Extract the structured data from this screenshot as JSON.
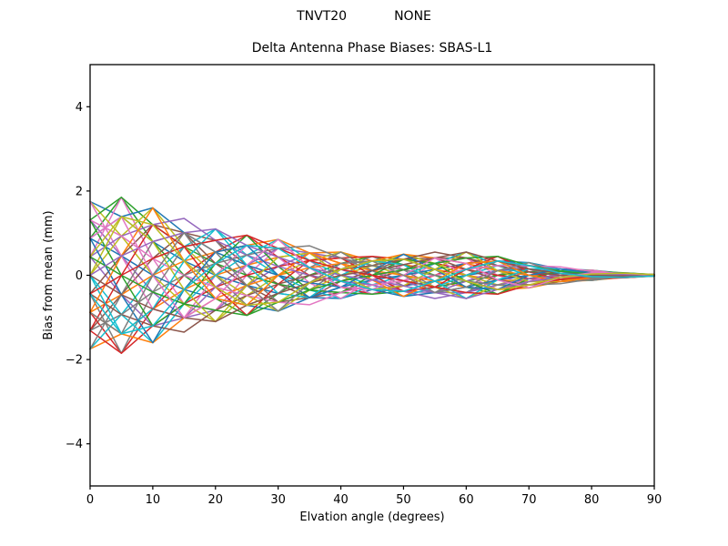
{
  "header": {
    "left_text": "TNVT20",
    "right_text": "NONE"
  },
  "colors": {
    "background": "#ffffff",
    "axes": "#000000"
  },
  "chart_data": {
    "type": "line",
    "suptitle": "TNVT20          NONE",
    "title": "Delta Antenna Phase Biases: SBAS-L1",
    "xlabel": "Elvation angle (degrees)",
    "ylabel": "Bias from mean (mm)",
    "xlim": [
      0,
      90
    ],
    "ylim": [
      -5,
      5
    ],
    "xticks": [
      0,
      10,
      20,
      30,
      40,
      50,
      60,
      70,
      80,
      90
    ],
    "xticklabels": [
      "0",
      "10",
      "20",
      "30",
      "40",
      "50",
      "60",
      "70",
      "80",
      "90"
    ],
    "yticks": [
      -4,
      -2,
      0,
      2,
      4
    ],
    "yticklabels": [
      "−4",
      "−2",
      "0",
      "2",
      "4"
    ],
    "grid": false,
    "legend": "none",
    "axis_box": true,
    "palette": [
      "#1f77b4",
      "#ff7f0e",
      "#2ca02c",
      "#d62728",
      "#9467bd",
      "#8c564b",
      "#e377c2",
      "#7f7f7f",
      "#bcbd22",
      "#17becf"
    ],
    "x": [
      0,
      5,
      10,
      15,
      20,
      25,
      30,
      35,
      40,
      45,
      50,
      55,
      60,
      65,
      70,
      75,
      80,
      85,
      90
    ],
    "series": [
      {
        "color": "#1f77b4",
        "values": [
          1.75,
          1.39,
          0.8,
          0.34,
          0.0,
          -0.24,
          -0.43,
          -0.53,
          -0.55,
          -0.34,
          -0.25,
          -0.14,
          0.0,
          0.11,
          0.15,
          0.15,
          0.12,
          0.05,
          0.01
        ]
      },
      {
        "color": "#ff7f0e",
        "values": [
          -1.75,
          -1.39,
          -0.8,
          -0.34,
          0.0,
          0.24,
          0.43,
          0.53,
          0.55,
          0.34,
          0.25,
          0.14,
          0.0,
          -0.11,
          -0.15,
          -0.15,
          -0.12,
          -0.05,
          -0.01
        ]
      },
      {
        "color": "#2ca02c",
        "values": [
          0.88,
          1.85,
          0.8,
          0.0,
          -0.55,
          -0.95,
          -0.43,
          0.0,
          0.28,
          0.45,
          0.25,
          0.0,
          -0.28,
          -0.45,
          -0.15,
          0.0,
          0.06,
          0.06,
          0.01
        ]
      },
      {
        "color": "#d62728",
        "values": [
          -0.88,
          -1.85,
          -0.8,
          0.0,
          0.55,
          0.95,
          0.43,
          0.0,
          -0.28,
          -0.45,
          -0.25,
          0.0,
          0.28,
          0.45,
          0.15,
          0.0,
          -0.06,
          -0.06,
          -0.01
        ]
      },
      {
        "color": "#9467bd",
        "values": [
          1.31,
          0.46,
          -0.4,
          -1.01,
          -0.83,
          -0.24,
          0.21,
          0.53,
          0.41,
          0.11,
          -0.13,
          -0.41,
          -0.41,
          -0.11,
          0.08,
          0.15,
          0.09,
          0.02,
          -0.01
        ]
      },
      {
        "color": "#8c564b",
        "values": [
          -1.31,
          -0.46,
          0.4,
          1.01,
          0.83,
          0.24,
          -0.21,
          -0.53,
          -0.41,
          -0.11,
          0.13,
          0.41,
          0.41,
          0.11,
          -0.08,
          -0.15,
          -0.09,
          -0.02,
          0.01
        ]
      },
      {
        "color": "#e377c2",
        "values": [
          0.44,
          1.85,
          0.4,
          -0.68,
          -0.83,
          0.0,
          0.64,
          0.35,
          -0.14,
          -0.45,
          -0.13,
          0.28,
          0.41,
          0.0,
          -0.23,
          -0.1,
          0.03,
          0.06,
          0.01
        ]
      },
      {
        "color": "#7f7f7f",
        "values": [
          -0.44,
          -1.85,
          -0.4,
          0.68,
          0.83,
          0.0,
          -0.64,
          -0.35,
          0.14,
          0.45,
          0.13,
          -0.28,
          -0.41,
          0.0,
          0.23,
          0.1,
          -0.03,
          -0.06,
          -0.01
        ]
      },
      {
        "color": "#bcbd22",
        "values": [
          1.75,
          0.93,
          0.0,
          -0.68,
          -1.1,
          -0.48,
          0.0,
          0.35,
          0.55,
          0.23,
          0.0,
          -0.28,
          -0.55,
          -0.23,
          0.0,
          0.1,
          0.12,
          0.03,
          0.0
        ]
      },
      {
        "color": "#17becf",
        "values": [
          -1.75,
          -0.93,
          0.0,
          0.68,
          1.1,
          0.48,
          0.0,
          -0.35,
          -0.55,
          -0.23,
          0.0,
          0.28,
          0.55,
          0.23,
          0.0,
          -0.1,
          -0.12,
          -0.03,
          0.0
        ]
      },
      {
        "color": "#1f77b4",
        "values": [
          0.88,
          0.46,
          0.0,
          -0.34,
          -0.55,
          -0.71,
          -0.85,
          -0.53,
          -0.28,
          -0.11,
          0.0,
          0.14,
          0.28,
          0.34,
          0.3,
          0.15,
          0.06,
          0.02,
          0.0
        ]
      },
      {
        "color": "#ff7f0e",
        "values": [
          -0.88,
          -0.46,
          0.0,
          0.34,
          0.55,
          0.71,
          0.85,
          0.53,
          0.28,
          0.11,
          0.0,
          -0.14,
          -0.28,
          -0.34,
          -0.3,
          -0.15,
          -0.06,
          -0.02,
          0.0
        ]
      },
      {
        "color": "#2ca02c",
        "values": [
          1.31,
          1.85,
          1.2,
          0.68,
          0.28,
          0.0,
          -0.21,
          -0.35,
          -0.41,
          -0.45,
          -0.38,
          -0.28,
          -0.14,
          0.0,
          0.08,
          0.1,
          0.09,
          0.06,
          0.02
        ]
      },
      {
        "color": "#d62728",
        "values": [
          -1.31,
          -1.85,
          -1.2,
          -0.68,
          -0.28,
          0.0,
          0.21,
          0.35,
          0.41,
          0.45,
          0.38,
          0.28,
          0.14,
          0.0,
          -0.08,
          -0.1,
          -0.09,
          -0.06,
          -0.02
        ]
      },
      {
        "color": "#9467bd",
        "values": [
          0.44,
          -0.46,
          -1.2,
          -1.01,
          -0.28,
          0.24,
          0.64,
          0.53,
          0.14,
          -0.11,
          -0.38,
          -0.41,
          -0.14,
          0.11,
          0.23,
          0.15,
          0.03,
          -0.02,
          -0.02
        ]
      },
      {
        "color": "#8c564b",
        "values": [
          -0.44,
          0.46,
          1.2,
          1.01,
          0.28,
          -0.24,
          -0.64,
          -0.53,
          -0.14,
          0.11,
          0.38,
          0.41,
          0.14,
          -0.11,
          -0.23,
          -0.15,
          -0.03,
          0.02,
          0.02
        ]
      },
      {
        "color": "#e377c2",
        "values": [
          1.75,
          0.46,
          -0.8,
          -1.01,
          0.0,
          0.71,
          0.43,
          -0.18,
          -0.55,
          -0.11,
          0.25,
          0.41,
          0.0,
          -0.34,
          -0.15,
          0.05,
          0.12,
          0.02,
          -0.01
        ]
      },
      {
        "color": "#7f7f7f",
        "values": [
          -1.75,
          -0.46,
          0.8,
          1.01,
          0.0,
          -0.71,
          -0.43,
          0.18,
          0.55,
          0.11,
          -0.25,
          -0.41,
          0.0,
          0.34,
          0.15,
          -0.05,
          -0.12,
          -0.02,
          0.01
        ]
      },
      {
        "color": "#bcbd22",
        "values": [
          0.0,
          0.93,
          1.6,
          0.68,
          0.0,
          -0.48,
          -0.85,
          -0.35,
          0.0,
          0.23,
          0.5,
          0.28,
          0.0,
          -0.23,
          -0.3,
          -0.1,
          0.0,
          0.03,
          0.02
        ]
      },
      {
        "color": "#17becf",
        "values": [
          0.0,
          -0.93,
          -1.6,
          -0.68,
          0.0,
          0.48,
          0.85,
          0.35,
          0.0,
          -0.23,
          -0.5,
          -0.28,
          0.0,
          0.23,
          0.3,
          0.1,
          0.0,
          -0.03,
          -0.02
        ]
      },
      {
        "color": "#1f77b4",
        "values": [
          0.88,
          1.39,
          1.6,
          1.01,
          0.55,
          0.24,
          0.0,
          -0.18,
          -0.28,
          -0.34,
          -0.5,
          -0.41,
          -0.28,
          -0.11,
          0.0,
          0.05,
          0.06,
          0.05,
          0.02
        ]
      },
      {
        "color": "#ff7f0e",
        "values": [
          -0.88,
          -1.39,
          -1.6,
          -1.01,
          -0.55,
          -0.24,
          0.0,
          0.18,
          0.28,
          0.34,
          0.5,
          0.41,
          0.28,
          0.11,
          0.0,
          -0.05,
          -0.06,
          -0.05,
          -0.02
        ]
      },
      {
        "color": "#2ca02c",
        "values": [
          1.31,
          0.0,
          -1.2,
          -0.68,
          0.28,
          0.95,
          0.21,
          -0.35,
          -0.41,
          0.0,
          0.38,
          0.28,
          -0.14,
          -0.45,
          -0.08,
          0.1,
          0.09,
          0.0,
          -0.02
        ]
      },
      {
        "color": "#d62728",
        "values": [
          -1.31,
          0.0,
          1.2,
          0.68,
          -0.28,
          -0.95,
          -0.21,
          0.35,
          0.41,
          0.0,
          -0.38,
          -0.28,
          0.14,
          0.45,
          0.08,
          -0.1,
          -0.09,
          0.0,
          0.02
        ]
      },
      {
        "color": "#9467bd",
        "values": [
          0.44,
          0.93,
          1.2,
          1.35,
          0.83,
          0.48,
          0.21,
          0.0,
          -0.14,
          -0.23,
          -0.38,
          -0.55,
          -0.41,
          -0.23,
          -0.08,
          0.0,
          0.03,
          0.03,
          0.02
        ]
      },
      {
        "color": "#8c564b",
        "values": [
          -0.44,
          -0.93,
          -1.2,
          -1.35,
          -0.83,
          -0.48,
          -0.21,
          0.0,
          0.14,
          0.23,
          0.38,
          0.55,
          0.41,
          0.23,
          0.08,
          0.0,
          -0.03,
          -0.03,
          -0.02
        ]
      },
      {
        "color": "#e377c2",
        "values": [
          1.31,
          0.93,
          0.4,
          0.0,
          -0.28,
          -0.48,
          -0.64,
          -0.7,
          -0.41,
          -0.23,
          -0.13,
          0.0,
          0.14,
          0.23,
          0.23,
          0.2,
          0.09,
          0.03,
          0.01
        ]
      },
      {
        "color": "#7f7f7f",
        "values": [
          -1.31,
          -0.93,
          -0.4,
          0.0,
          0.28,
          0.48,
          0.64,
          0.7,
          0.41,
          0.23,
          0.13,
          0.0,
          -0.14,
          -0.23,
          -0.23,
          -0.2,
          -0.09,
          -0.03,
          -0.01
        ]
      },
      {
        "color": "#bcbd22",
        "values": [
          0.0,
          1.39,
          0.8,
          -0.34,
          -1.1,
          -0.24,
          0.43,
          0.53,
          0.0,
          -0.34,
          -0.25,
          0.14,
          0.55,
          0.11,
          -0.15,
          -0.15,
          0.0,
          0.05,
          0.01
        ]
      },
      {
        "color": "#17becf",
        "values": [
          0.0,
          -1.39,
          -0.8,
          0.34,
          1.1,
          0.24,
          -0.43,
          -0.53,
          0.0,
          0.34,
          0.25,
          -0.14,
          -0.55,
          -0.11,
          0.15,
          0.15,
          0.0,
          -0.05,
          -0.01
        ]
      },
      {
        "color": "#1f77b4",
        "values": [
          0.88,
          -0.46,
          -1.6,
          -0.34,
          0.55,
          0.71,
          0.0,
          -0.53,
          -0.28,
          0.11,
          0.5,
          0.14,
          -0.28,
          -0.34,
          0.0,
          0.15,
          0.06,
          -0.02,
          -0.02
        ]
      },
      {
        "color": "#ff7f0e",
        "values": [
          -0.88,
          0.46,
          1.6,
          0.34,
          -0.55,
          -0.71,
          0.0,
          0.53,
          0.28,
          -0.11,
          -0.5,
          -0.14,
          0.28,
          0.34,
          0.0,
          -0.15,
          -0.06,
          0.02,
          0.02
        ]
      },
      {
        "color": "#2ca02c",
        "values": [
          0.44,
          0.0,
          -0.4,
          -0.68,
          -0.83,
          -0.95,
          -0.64,
          -0.35,
          -0.14,
          0.0,
          0.13,
          0.28,
          0.41,
          0.45,
          0.23,
          0.1,
          0.03,
          0.0,
          -0.01
        ]
      },
      {
        "color": "#d62728",
        "values": [
          -0.44,
          0.0,
          0.4,
          0.68,
          0.83,
          0.95,
          0.64,
          0.35,
          0.14,
          0.0,
          -0.13,
          -0.28,
          -0.41,
          -0.45,
          -0.23,
          -0.1,
          -0.03,
          0.0,
          0.01
        ]
      },
      {
        "color": "#9467bd",
        "values": [
          0.0,
          0.46,
          0.8,
          1.01,
          1.1,
          0.71,
          0.43,
          0.18,
          0.0,
          -0.11,
          -0.25,
          -0.41,
          -0.55,
          -0.34,
          -0.15,
          -0.05,
          0.0,
          0.02,
          0.01
        ]
      },
      {
        "color": "#8c564b",
        "values": [
          0.0,
          -0.46,
          -0.8,
          -1.01,
          -1.1,
          -0.71,
          -0.43,
          -0.18,
          0.0,
          0.11,
          0.25,
          0.41,
          0.55,
          0.34,
          0.15,
          0.05,
          0.0,
          -0.02,
          -0.01
        ]
      },
      {
        "color": "#e377c2",
        "values": [
          0.88,
          1.39,
          0.0,
          -1.01,
          -0.55,
          0.24,
          0.85,
          0.18,
          -0.28,
          -0.34,
          0.0,
          0.41,
          0.28,
          -0.11,
          -0.3,
          -0.05,
          0.06,
          0.05,
          0.0
        ]
      },
      {
        "color": "#7f7f7f",
        "values": [
          -0.88,
          -1.39,
          0.0,
          1.01,
          0.55,
          -0.24,
          -0.85,
          -0.18,
          0.28,
          0.34,
          0.0,
          -0.41,
          -0.28,
          0.11,
          0.3,
          0.05,
          -0.06,
          -0.05,
          0.0
        ]
      },
      {
        "color": "#bcbd22",
        "values": [
          0.44,
          1.39,
          1.2,
          0.34,
          -0.28,
          -0.71,
          -0.64,
          -0.18,
          0.14,
          0.34,
          0.38,
          0.14,
          -0.14,
          -0.34,
          -0.23,
          -0.05,
          0.03,
          0.05,
          0.02
        ]
      },
      {
        "color": "#17becf",
        "values": [
          -0.44,
          -1.39,
          -1.2,
          -0.34,
          0.28,
          0.71,
          0.64,
          0.18,
          -0.14,
          -0.34,
          -0.38,
          -0.14,
          0.14,
          0.34,
          0.23,
          0.05,
          -0.03,
          -0.05,
          -0.02
        ]
      }
    ]
  }
}
